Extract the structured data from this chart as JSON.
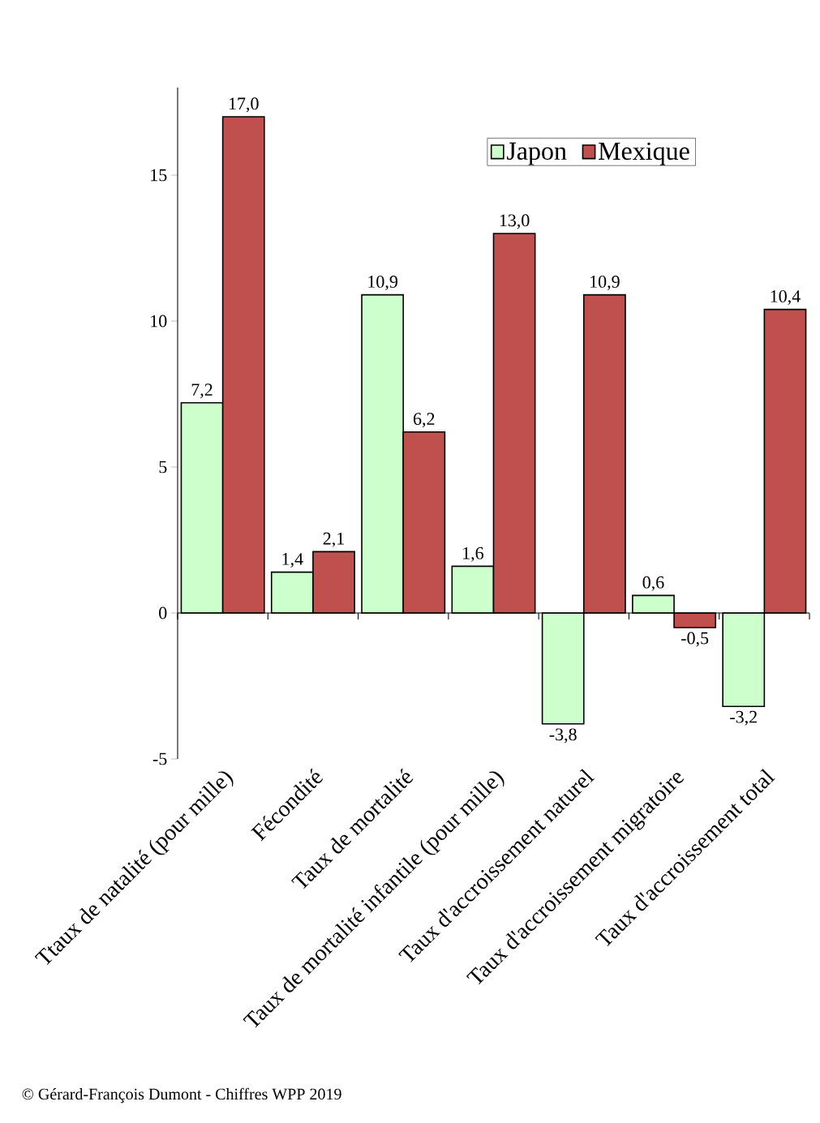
{
  "chart_data": {
    "type": "bar",
    "categories": [
      "Ttaux de natalité (pour mille)",
      "Fécondité",
      "Taux de mortalité",
      "Taux de mortalité infantile (pour mille)",
      "Taux d'accroissement naturel",
      "Taux d'accroissement migratoire",
      "Taux d'accroissement total"
    ],
    "series": [
      {
        "name": "Japon",
        "color": "#ccffcc",
        "values": [
          7.2,
          1.4,
          10.9,
          1.6,
          -3.8,
          0.6,
          -3.2
        ],
        "value_labels": [
          "7,2",
          "1,4",
          "10,9",
          "1,6",
          "-3,8",
          "0,6",
          "-3,2"
        ]
      },
      {
        "name": "Mexique",
        "color": "#c0504d",
        "values": [
          17.0,
          2.1,
          6.2,
          13.0,
          10.9,
          -0.5,
          10.4
        ],
        "value_labels": [
          "17,0",
          "2,1",
          "6,2",
          "13,0",
          "10,9",
          "-0,5",
          "10,4"
        ]
      }
    ],
    "ylim": [
      -5,
      18
    ],
    "yticks": [
      -5,
      0,
      5,
      10,
      15
    ],
    "grid": false,
    "ref_lines": [
      {
        "axis": "y",
        "value": 0,
        "color": "#000000"
      }
    ],
    "legend": "top right",
    "annotations": [
      "© Gérard-François Dumont - Chiffres WPP 2019"
    ]
  }
}
